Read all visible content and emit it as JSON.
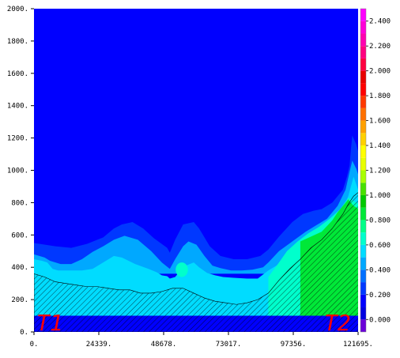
{
  "chart_data": {
    "type": "heatmap",
    "subtype": "filled-contour cross-section with terrain",
    "xlim": [
      0,
      121695
    ],
    "ylim": [
      0,
      2000
    ],
    "x_ticks": [
      0,
      24339,
      48678,
      73017,
      97356,
      121695
    ],
    "x_tick_labels": [
      "0.",
      "24339.",
      "48678.",
      "73017.",
      "97356.",
      "121695."
    ],
    "y_ticks": [
      0,
      200,
      400,
      600,
      800,
      1000,
      1200,
      1400,
      1600,
      1800,
      2000
    ],
    "y_tick_labels": [
      "0.",
      "200.",
      "400.",
      "600.",
      "800.",
      "1000.",
      "1200.",
      "1400.",
      "1600.",
      "1800.",
      "2000."
    ],
    "colorbar": {
      "levels": [
        -0.1,
        0.0,
        0.1,
        0.2,
        0.3,
        0.4,
        0.5,
        0.6,
        0.7,
        0.8,
        0.9,
        1.0,
        1.1,
        1.2,
        1.3,
        1.4,
        1.5,
        1.6,
        1.7,
        1.8,
        1.9,
        2.0,
        2.1,
        2.2,
        2.3,
        2.4,
        2.5
      ],
      "tick_labels": [
        "0.000",
        "0.200",
        "0.400",
        "0.600",
        "0.800",
        "1.000",
        "1.200",
        "1.400",
        "1.600",
        "1.800",
        "2.000",
        "2.200",
        "2.400"
      ],
      "colors": [
        "#6a00d8",
        "#0000e0",
        "#0000ff",
        "#0038ff",
        "#0070ff",
        "#00a8ff",
        "#00dcff",
        "#00ffcc",
        "#00ff88",
        "#00e838",
        "#00c800",
        "#48e000",
        "#a8ff00",
        "#e8ff00",
        "#ffff00",
        "#ffd000",
        "#ffa000",
        "#ff7000",
        "#ff3800",
        "#ff0000",
        "#e80000",
        "#ff0040",
        "#ff0080",
        "#ff00b0",
        "#ff00d8",
        "#ff00ff"
      ]
    },
    "background_value": 0.1,
    "contour_bands": [
      {
        "value": 0.2,
        "color": "#0038ff",
        "top": [
          [
            0,
            550
          ],
          [
            8000,
            530
          ],
          [
            14000,
            520
          ],
          [
            20000,
            545
          ],
          [
            26000,
            585
          ],
          [
            30000,
            640
          ],
          [
            33000,
            665
          ],
          [
            37000,
            680
          ],
          [
            41000,
            640
          ],
          [
            45000,
            580
          ],
          [
            50000,
            520
          ],
          [
            51000,
            490
          ],
          [
            53000,
            570
          ],
          [
            56000,
            665
          ],
          [
            60000,
            680
          ],
          [
            62000,
            640
          ],
          [
            66000,
            530
          ],
          [
            70000,
            470
          ],
          [
            75000,
            450
          ],
          [
            80000,
            450
          ],
          [
            85000,
            470
          ],
          [
            88000,
            510
          ],
          [
            92000,
            590
          ],
          [
            97000,
            680
          ],
          [
            101000,
            730
          ],
          [
            105000,
            750
          ],
          [
            108000,
            760
          ],
          [
            112000,
            800
          ],
          [
            116000,
            880
          ],
          [
            117500,
            960
          ],
          [
            118500,
            1030
          ],
          [
            119000,
            1130
          ],
          [
            119500,
            1215
          ],
          [
            121000,
            1160
          ],
          [
            124000,
            980
          ],
          [
            126000,
            900
          ],
          [
            128000,
            950
          ],
          [
            130000,
            970
          ],
          [
            132000,
            960
          ],
          [
            134000,
            920
          ],
          [
            136000,
            900
          ],
          [
            137000,
            880
          ],
          [
            138000,
            840
          ]
        ],
        "bottom": [
          [
            0,
            370
          ],
          [
            138000,
            370
          ]
        ]
      },
      {
        "value": 0.3,
        "color": "#00a8ff",
        "top": [
          [
            0,
            480
          ],
          [
            4000,
            460
          ],
          [
            6000,
            440
          ],
          [
            10000,
            420
          ],
          [
            14000,
            420
          ],
          [
            18000,
            450
          ],
          [
            22000,
            495
          ],
          [
            26000,
            530
          ],
          [
            30000,
            570
          ],
          [
            34000,
            595
          ],
          [
            39000,
            570
          ],
          [
            44000,
            500
          ],
          [
            48000,
            430
          ],
          [
            51000,
            390
          ],
          [
            53000,
            450
          ],
          [
            56000,
            530
          ],
          [
            58000,
            560
          ],
          [
            61000,
            540
          ],
          [
            64000,
            470
          ],
          [
            67000,
            410
          ],
          [
            70000,
            395
          ],
          [
            74000,
            380
          ],
          [
            78000,
            380
          ],
          [
            82000,
            385
          ],
          [
            86000,
            400
          ],
          [
            88000,
            430
          ],
          [
            92000,
            500
          ],
          [
            97000,
            560
          ],
          [
            102000,
            620
          ],
          [
            106000,
            660
          ],
          [
            110000,
            700
          ],
          [
            114000,
            780
          ],
          [
            117000,
            880
          ],
          [
            118500,
            990
          ],
          [
            119500,
            1060
          ],
          [
            121000,
            1010
          ],
          [
            124000,
            860
          ],
          [
            126000,
            840
          ],
          [
            128000,
            870
          ],
          [
            130000,
            900
          ],
          [
            132000,
            860
          ],
          [
            135000,
            800
          ],
          [
            138000,
            720
          ]
        ],
        "bottom": [
          [
            0,
            360
          ],
          [
            138000,
            360
          ]
        ]
      },
      {
        "value": 0.4,
        "color": "#00dcff",
        "top": [
          [
            0,
            450
          ],
          [
            3000,
            440
          ],
          [
            5000,
            430
          ],
          [
            7000,
            390
          ],
          [
            9000,
            380
          ],
          [
            12000,
            380
          ],
          [
            18000,
            380
          ],
          [
            22000,
            390
          ],
          [
            25000,
            420
          ],
          [
            28000,
            450
          ],
          [
            30000,
            470
          ],
          [
            33000,
            460
          ],
          [
            38000,
            420
          ],
          [
            43000,
            390
          ],
          [
            46000,
            370
          ],
          [
            48000,
            350
          ],
          [
            50000,
            345
          ],
          [
            51000,
            330
          ],
          [
            53000,
            340
          ],
          [
            55000,
            380
          ],
          [
            57000,
            410
          ],
          [
            60000,
            430
          ],
          [
            62000,
            400
          ],
          [
            65000,
            365
          ],
          [
            68000,
            350
          ],
          [
            71000,
            340
          ],
          [
            75000,
            335
          ],
          [
            80000,
            330
          ],
          [
            84000,
            330
          ],
          [
            88000,
            380
          ],
          [
            92000,
            420
          ],
          [
            96000,
            470
          ],
          [
            100000,
            520
          ],
          [
            104000,
            560
          ],
          [
            108000,
            620
          ],
          [
            112000,
            680
          ],
          [
            116000,
            760
          ],
          [
            118000,
            840
          ],
          [
            120000,
            960
          ],
          [
            123000,
            820
          ],
          [
            126000,
            780
          ],
          [
            130000,
            820
          ],
          [
            134000,
            690
          ],
          [
            138000,
            560
          ]
        ],
        "bottom": [
          [
            0,
            100
          ],
          [
            138000,
            100
          ]
        ]
      },
      {
        "value": 0.5,
        "color": "#00ffcc",
        "top": [
          [
            88000,
            340
          ],
          [
            92000,
            430
          ],
          [
            95000,
            500
          ],
          [
            99000,
            560
          ],
          [
            103000,
            610
          ],
          [
            107000,
            650
          ],
          [
            111000,
            700
          ],
          [
            115000,
            760
          ],
          [
            118000,
            830
          ],
          [
            121000,
            800
          ],
          [
            124000,
            760
          ],
          [
            127000,
            780
          ],
          [
            130000,
            820
          ],
          [
            133000,
            700
          ],
          [
            136000,
            620
          ],
          [
            138000,
            560
          ]
        ],
        "bottom": [
          [
            88000,
            100
          ],
          [
            138000,
            100
          ]
        ]
      },
      {
        "value": 0.6,
        "color": "#00e838",
        "top": [
          [
            100000,
            560
          ],
          [
            104000,
            590
          ],
          [
            108000,
            620
          ],
          [
            112000,
            690
          ],
          [
            114000,
            740
          ],
          [
            118000,
            820
          ],
          [
            120000,
            780
          ],
          [
            124000,
            740
          ],
          [
            128000,
            800
          ],
          [
            130000,
            840
          ],
          [
            133000,
            700
          ],
          [
            136000,
            580
          ],
          [
            138000,
            470
          ]
        ],
        "bottom": [
          [
            100000,
            100
          ],
          [
            138000,
            100
          ]
        ]
      }
    ],
    "contour_blobs": [
      {
        "value": 0.5,
        "color": "#00ffcc",
        "center": [
          55500,
          385
        ],
        "radius": [
          2300,
          45
        ]
      }
    ],
    "terrain": [
      [
        0,
        360
      ],
      [
        4000,
        340
      ],
      [
        8000,
        310
      ],
      [
        12000,
        300
      ],
      [
        16000,
        290
      ],
      [
        20000,
        280
      ],
      [
        24000,
        280
      ],
      [
        28000,
        270
      ],
      [
        32000,
        260
      ],
      [
        36000,
        260
      ],
      [
        40000,
        240
      ],
      [
        44000,
        240
      ],
      [
        48000,
        250
      ],
      [
        52000,
        270
      ],
      [
        56000,
        270
      ],
      [
        60000,
        240
      ],
      [
        64000,
        210
      ],
      [
        68000,
        190
      ],
      [
        72000,
        180
      ],
      [
        76000,
        170
      ],
      [
        80000,
        180
      ],
      [
        84000,
        200
      ],
      [
        88000,
        240
      ],
      [
        92000,
        320
      ],
      [
        96000,
        390
      ],
      [
        100000,
        450
      ],
      [
        104000,
        520
      ],
      [
        108000,
        570
      ],
      [
        112000,
        640
      ],
      [
        116000,
        730
      ],
      [
        118000,
        790
      ],
      [
        120000,
        840
      ],
      [
        123000,
        880
      ],
      [
        126000,
        750
      ],
      [
        130000,
        790
      ],
      [
        133000,
        880
      ],
      [
        136000,
        600
      ],
      [
        138000,
        430
      ]
    ],
    "annotations": [
      {
        "text": "T1",
        "color": "#ff0000"
      },
      {
        "text": "T2",
        "color": "#ff0000"
      }
    ]
  }
}
